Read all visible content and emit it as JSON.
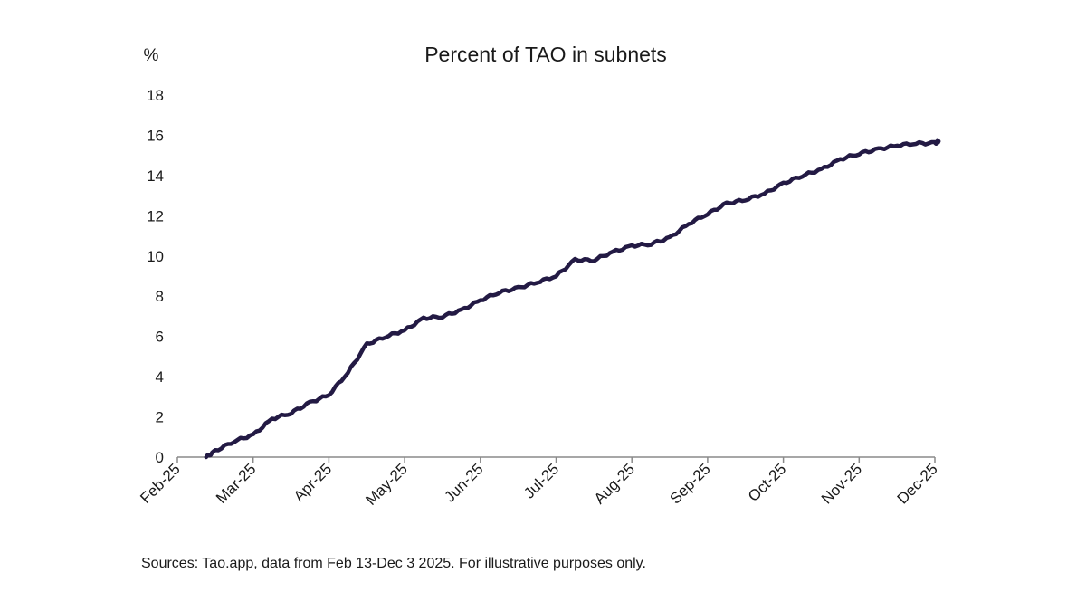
{
  "chart_data": {
    "type": "line",
    "title": "Percent of TAO in subnets",
    "ylabel": "%",
    "xlabel": "",
    "ylim": [
      0,
      18
    ],
    "yticks": [
      0,
      2,
      4,
      6,
      8,
      10,
      12,
      14,
      16,
      18
    ],
    "x_ticks": [
      "Feb-25",
      "Mar-25",
      "Apr-25",
      "May-25",
      "Jun-25",
      "Jul-25",
      "Aug-25",
      "Sep-25",
      "Oct-25",
      "Nov-25",
      "Dec-25"
    ],
    "grid": false,
    "legend": "none",
    "series_color": "#231a44",
    "series": [
      {
        "name": "Percent of TAO in subnets",
        "x": [
          0.38,
          0.5,
          0.75,
          1.0,
          1.25,
          1.5,
          1.75,
          2.0,
          2.25,
          2.5,
          2.75,
          3.0,
          3.25,
          3.5,
          3.75,
          4.0,
          4.25,
          4.5,
          4.75,
          5.0,
          5.25,
          5.5,
          5.75,
          6.0,
          6.25,
          6.5,
          6.75,
          7.0,
          7.25,
          7.5,
          7.75,
          8.0,
          8.25,
          8.5,
          8.75,
          9.0,
          9.25,
          9.5,
          9.75,
          10.0,
          10.05
        ],
        "values": [
          0.0,
          0.3,
          0.8,
          1.1,
          1.9,
          2.2,
          2.7,
          3.1,
          4.2,
          5.6,
          6.0,
          6.3,
          6.9,
          7.0,
          7.3,
          7.8,
          8.2,
          8.4,
          8.7,
          9.0,
          9.8,
          9.8,
          10.2,
          10.5,
          10.6,
          10.9,
          11.6,
          12.1,
          12.6,
          12.8,
          13.1,
          13.6,
          14.0,
          14.3,
          14.8,
          15.1,
          15.3,
          15.5,
          15.6,
          15.6,
          15.7
        ]
      }
    ],
    "source_note": "Sources: Tao.app, data from Feb 13-Dec 3 2025. For illustrative purposes only."
  }
}
